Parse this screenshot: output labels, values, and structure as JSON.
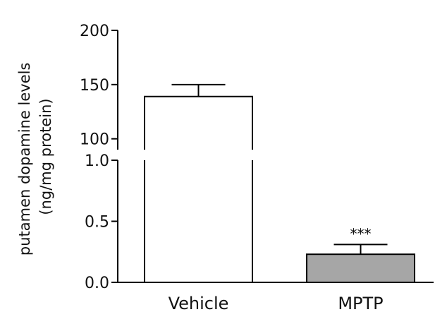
{
  "chart_data": {
    "type": "bar",
    "ylabel_line1": "putamen dopamine levels",
    "ylabel_line2": "(ng/mg protein)",
    "categories": [
      "Vehicle",
      "MPTP"
    ],
    "values": [
      139,
      0.23
    ],
    "errors": [
      11,
      0.08
    ],
    "bar_colors": [
      "#ffffff",
      "#a6a6a6"
    ],
    "annotations": [
      "",
      "***"
    ],
    "y_axis_broken": true,
    "lower_segment": {
      "ylim": [
        0.0,
        1.0
      ],
      "ticks": [
        "0.0",
        "0.5",
        "1.0"
      ]
    },
    "upper_segment": {
      "ylim": [
        90,
        200
      ],
      "ticks": [
        "100",
        "150",
        "200"
      ]
    },
    "grid": false,
    "legend": "none"
  }
}
